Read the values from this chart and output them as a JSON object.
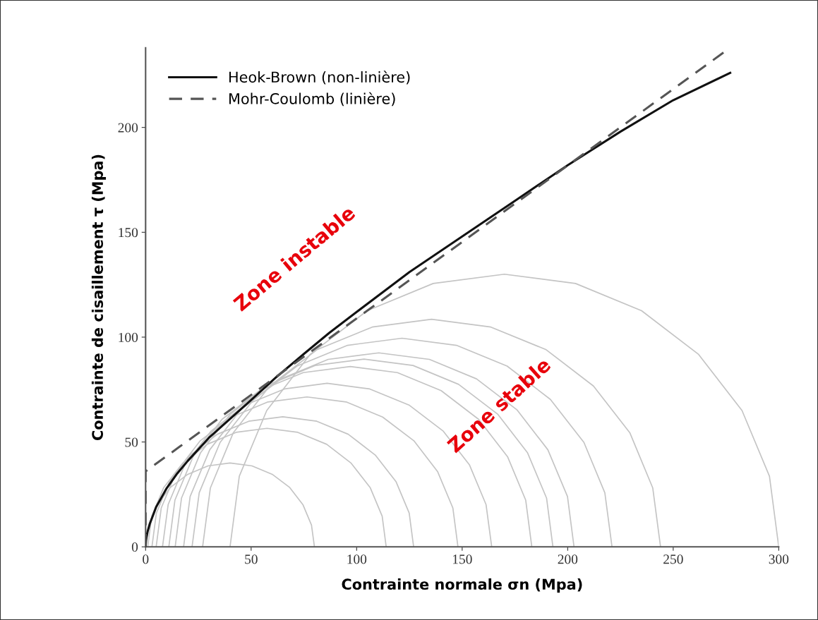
{
  "chart_data": {
    "type": "line",
    "xlabel": "Contrainte normale σn (Mpa)",
    "ylabel": "Contrainte de cisaillement τ (Mpa)",
    "xlim": [
      0,
      300
    ],
    "ylim": [
      0,
      238
    ],
    "xticks": [
      0,
      50,
      100,
      150,
      200,
      250,
      300
    ],
    "yticks": [
      0,
      50,
      100,
      150,
      200
    ],
    "grid": false,
    "legend": "top left",
    "marker": "none",
    "annotations": [
      "Zone instable",
      "Zone stable"
    ],
    "series": [
      {
        "name": "Heok-Brown (non-linière)",
        "color": "#111111",
        "line_style": "solid",
        "x": [
          0,
          0.2,
          0.5,
          1,
          2,
          3.5,
          5,
          7.5,
          10,
          15,
          20,
          30,
          40,
          50,
          62,
          75,
          87,
          100,
          125,
          150,
          175,
          200,
          225,
          250,
          277
        ],
        "values": [
          0,
          3,
          5,
          7.5,
          11,
          15,
          19,
          23.5,
          28,
          35,
          41,
          52,
          61,
          70,
          81,
          92,
          102,
          112,
          131,
          148,
          165,
          182,
          198,
          213,
          226
        ]
      },
      {
        "name": "Mohr-Coulomb (linière)",
        "color": "#555555",
        "line_style": "dashed",
        "x": [
          0,
          0,
          277
        ],
        "values": [
          0,
          36,
          238
        ]
      },
      {
        "color": "#c4c4c4",
        "line_style": "solid",
        "x": [
          0,
          1.4,
          5.4,
          11.7,
          20,
          29.6,
          40,
          50.4,
          60,
          68.3,
          74.6,
          78.6,
          80
        ],
        "values": [
          0,
          10.4,
          20,
          28.3,
          34.6,
          38.6,
          40,
          38.6,
          34.6,
          28.3,
          20,
          10.4,
          0
        ]
      },
      {
        "color": "#c4c4c4",
        "line_style": "solid",
        "x": [
          1,
          2.9,
          8.6,
          17.6,
          29.2,
          42.9,
          57.5,
          72.1,
          85.8,
          97.4,
          106.4,
          112.1,
          114
        ],
        "values": [
          0,
          14.6,
          28.3,
          39.9,
          48.9,
          54.6,
          56.5,
          54.6,
          48.9,
          39.9,
          28.3,
          14.6,
          0
        ]
      },
      {
        "color": "#c4c4c4",
        "line_style": "solid",
        "x": [
          3,
          5.1,
          11.3,
          21.2,
          34,
          48.9,
          65,
          81.1,
          96,
          108.8,
          118.7,
          124.9,
          127
        ],
        "values": [
          0,
          16.1,
          31,
          43.8,
          53.7,
          59.9,
          62,
          59.9,
          53.7,
          43.8,
          31,
          16.1,
          0
        ]
      },
      {
        "color": "#c4c4c4",
        "line_style": "solid",
        "x": [
          5,
          7.4,
          14.6,
          25.9,
          40.7,
          58.0,
          76.5,
          95.0,
          112.3,
          127.1,
          138.4,
          145.6,
          148
        ],
        "values": [
          0,
          18.5,
          35.8,
          50.6,
          61.9,
          69.1,
          71.5,
          69.1,
          61.9,
          50.6,
          35.8,
          18.5,
          0
        ]
      },
      {
        "color": "#c4c4c4",
        "line_style": "solid",
        "x": [
          8,
          10.7,
          18.5,
          30.9,
          47,
          65.8,
          86,
          106.2,
          125,
          141.1,
          153.5,
          161.3,
          164
        ],
        "values": [
          0,
          20.2,
          39,
          55.1,
          67.5,
          75.3,
          78,
          75.3,
          67.5,
          55.1,
          39,
          20.2,
          0
        ]
      },
      {
        "color": "#c4c4c4",
        "line_style": "solid",
        "x": [
          11,
          13.9,
          22.5,
          36.2,
          54,
          74.7,
          97,
          119.3,
          140,
          157.8,
          171.5,
          180.1,
          183
        ],
        "values": [
          0,
          22.3,
          43,
          60.8,
          74.5,
          83.1,
          86,
          83.1,
          74.5,
          60.8,
          43,
          22.3,
          0
        ]
      },
      {
        "color": "#c4c4c4",
        "line_style": "solid",
        "x": [
          14,
          17.0,
          26.0,
          40.2,
          58.7,
          80.3,
          103.5,
          126.7,
          148.3,
          166.8,
          181.0,
          190.0,
          193
        ],
        "values": [
          0,
          23.2,
          44.8,
          63.3,
          77.5,
          86.5,
          89.5,
          86.5,
          77.5,
          63.3,
          44.8,
          23.2,
          0
        ]
      },
      {
        "color": "#c4c4c4",
        "line_style": "solid",
        "x": [
          18,
          21.1,
          30.4,
          45.1,
          64.2,
          86.5,
          110.5,
          134.5,
          156.8,
          175.9,
          190.6,
          199.9,
          203
        ],
        "values": [
          0,
          24,
          46.3,
          65.4,
          80.1,
          89.4,
          92.5,
          89.4,
          80.1,
          65.4,
          46.3,
          24,
          0
        ]
      },
      {
        "color": "#c4c4c4",
        "line_style": "solid",
        "x": [
          22,
          25.4,
          35.3,
          51.2,
          71.7,
          95.7,
          121.5,
          147.3,
          171.3,
          191.8,
          207.7,
          217.6,
          221
        ],
        "values": [
          0,
          25.8,
          49.8,
          70.3,
          86.2,
          96.1,
          99.5,
          96.1,
          86.2,
          70.3,
          49.8,
          25.8,
          0
        ]
      },
      {
        "color": "#c4c4c4",
        "line_style": "solid",
        "x": [
          27,
          30.7,
          41.5,
          58.8,
          81.2,
          107.4,
          135.5,
          163.6,
          189.8,
          212.2,
          229.5,
          240.3,
          244
        ],
        "values": [
          0,
          28.1,
          54.3,
          76.7,
          94,
          104.8,
          108.5,
          104.8,
          94,
          76.7,
          54.3,
          28.1,
          0
        ]
      },
      {
        "color": "#c4c4c4",
        "line_style": "solid",
        "x": [
          40,
          44.4,
          57.4,
          78.1,
          105,
          136.3,
          170,
          203.7,
          235,
          261.9,
          282.6,
          295.6,
          300
        ],
        "values": [
          0,
          33.7,
          65,
          91.9,
          112.6,
          125.6,
          130,
          125.6,
          112.6,
          91.9,
          65,
          33.7,
          0
        ]
      }
    ]
  }
}
